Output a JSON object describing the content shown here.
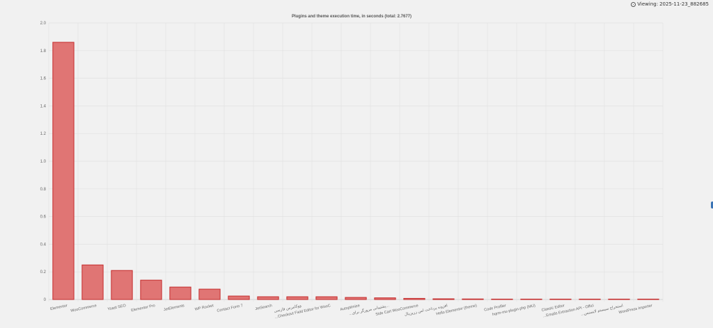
{
  "header": {
    "viewing_label": "Viewing:",
    "viewing_value": "2025-11-23_882685"
  },
  "chart_data": {
    "type": "bar",
    "title": "Plugins and theme execution time, in seconds (total: 2.7677)",
    "xlabel": "",
    "ylabel": "",
    "ylim": [
      0,
      2.0
    ],
    "yticks": [
      0,
      0.2,
      0.4,
      0.6,
      0.8,
      1.0,
      1.2,
      1.4,
      1.6,
      1.8,
      2.0
    ],
    "ytick_labels": [
      "0",
      "0.2",
      "0.4",
      "0.6",
      "0.8",
      "1.0",
      "1.2",
      "1.4",
      "1.6",
      "1.8",
      "2.0"
    ],
    "grid": true,
    "categories": [
      "Elementor",
      "WooCommerce",
      "Yoast SEO",
      "Elementor Pro",
      "JetElements",
      "WP Rocket",
      "Contact Form 7",
      "JetSearch",
      "ووکامرس فارسی",
      "...Checkout Field Editor for WooC",
      "Autoptimize",
      "...پشتیبانی مرورگر برای...",
      "Side Cart WooCommerce",
      "افزونه پرداخت امن زرین‌پال",
      "Hello Elementor (theme)",
      "Code Profiler",
      "hqrm-mu-plugin.php (MU)",
      "Classic Editor",
      "...Emails Extraction API - Offici",
      "...استخراج سیستم لایسنس",
      "WordPress Importer"
    ],
    "values": [
      1.86,
      0.25,
      0.21,
      0.14,
      0.09,
      0.075,
      0.025,
      0.02,
      0.02,
      0.02,
      0.015,
      0.012,
      0.008,
      0.005,
      0.004,
      0.003,
      0.002,
      0.002,
      0.002,
      0.001,
      0.001
    ],
    "colors": {
      "bar_fill": "#e07574",
      "bar_stroke": "#c42b2b",
      "grid": "#e1e1e1",
      "text": "#666666",
      "title": "#555555"
    }
  }
}
